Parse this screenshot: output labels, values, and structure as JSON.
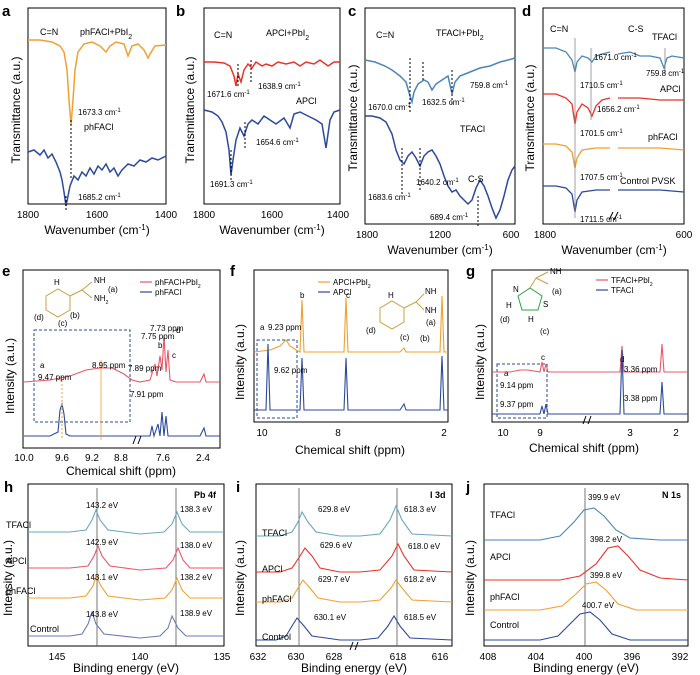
{
  "figure": {
    "panels": [
      {
        "id": "a",
        "label": "a",
        "type": "ftir",
        "xlabel": "Wavenumber (cm",
        "xlabel_sup": "-1",
        "xlabel_end": ")",
        "ylabel": "Transmittance (a.u.)",
        "xticks": [
          "1800",
          "1600",
          "1400"
        ],
        "xlim": [
          1800,
          1400
        ],
        "peak_label": "C=N",
        "series": [
          {
            "name": "phFACl+PbI2",
            "color": "#f0a030",
            "legend_main": "phFACl+PbI",
            "legend_sub": "2",
            "peak_cm": 1673.3,
            "peak_text": "1673.3 cm",
            "peak_sup": "-1"
          },
          {
            "name": "phFACl",
            "color": "#2b4a9a",
            "legend_main": "phFACl",
            "peak_cm": 1685.2,
            "peak_text": "1685.2 cm",
            "peak_sup": "-1"
          }
        ]
      },
      {
        "id": "b",
        "label": "b",
        "type": "ftir",
        "xlabel": "Wavenumber (cm",
        "xlabel_sup": "-1",
        "xlabel_end": ")",
        "ylabel": "Transmittance (a.u.)",
        "xticks": [
          "1800",
          "1600",
          "1400"
        ],
        "xlim": [
          1800,
          1400
        ],
        "peak_label": "C=N",
        "series": [
          {
            "name": "APCl+PbI2",
            "color": "#e8322a",
            "legend_main": "APCl+PbI",
            "legend_sub": "2",
            "peaks_text": [
              "1671.6 cm",
              "1638.9 cm"
            ],
            "peak_sup": "-1"
          },
          {
            "name": "APCl",
            "color": "#2b4a9a",
            "legend_main": "APCl",
            "peaks_text": [
              "1691.3 cm",
              "1654.6 cm"
            ],
            "peak_sup": "-1"
          }
        ]
      },
      {
        "id": "c",
        "label": "c",
        "type": "ftir",
        "xlabel": "Wavenumber (cm",
        "xlabel_sup": "-1",
        "xlabel_end": ")",
        "ylabel": "Transmittance (a.u.)",
        "xticks": [
          "1800",
          "1200",
          "600"
        ],
        "xlim": [
          1800,
          600
        ],
        "peak_label": "C=N",
        "cs_label": "C-S",
        "series": [
          {
            "name": "TFACl+PbI2",
            "color": "#4a86b8",
            "legend_main": "TFACl+PbI",
            "legend_sub": "2",
            "peaks_text": [
              "1670.0 cm",
              "1632.5 cm",
              "759.8 cm"
            ],
            "peak_sup": "-1"
          },
          {
            "name": "TFACl",
            "color": "#2b4a9a",
            "legend_main": "TFACl",
            "peaks_text": [
              "1683.6 cm",
              "1640.2 cm",
              "689.4 cm"
            ],
            "peak_sup": "-1"
          }
        ]
      },
      {
        "id": "d",
        "label": "d",
        "type": "ftir",
        "xlabel": "Wavenumber (cm",
        "xlabel_sup": "-1",
        "xlabel_end": ")",
        "ylabel": "Transmittance (a.u.)",
        "xticks": [
          "1800",
          "600"
        ],
        "xlim": [
          1800,
          600
        ],
        "peak_label": "C=N",
        "cs_label": "C-S",
        "series": [
          {
            "name": "TFACl",
            "color": "#4a86b8",
            "peaks_text": [
              "1710.5 cm",
              "1671.0 cm",
              "759.8 cm"
            ]
          },
          {
            "name": "APCl",
            "color": "#e8322a",
            "peaks_text": [
              "1701.5 cm",
              "1656.2 cm"
            ]
          },
          {
            "name": "phFACl",
            "color": "#f0a030",
            "peaks_text": [
              "1707.5 cm"
            ]
          },
          {
            "name": "Control PVSK",
            "color": "#2b4a9a",
            "peaks_text": [
              "1711.5 cm"
            ]
          }
        ],
        "peak_sup": "-1"
      },
      {
        "id": "e",
        "label": "e",
        "type": "nmr",
        "xlabel": "Chemical shift (ppm)",
        "ylabel": "Intensity (a.u.)",
        "xticks": [
          "10.0",
          "9.6",
          "9.2",
          "8.8",
          "7.6",
          "2.4"
        ],
        "series": [
          {
            "name": "phFACl+PbI2",
            "color": "#e85868",
            "legend_main": "phFACl+PbI",
            "legend_sub": "2"
          },
          {
            "name": "phFACl",
            "color": "#2b4a9a",
            "legend_main": "phFACl"
          }
        ],
        "annotations": [
          "a",
          "9.47 ppm",
          "8.95 ppm",
          "7.91 ppm",
          "7.75 ppm",
          "7.73 ppm",
          "7.89 ppm",
          "b",
          "c",
          "d"
        ],
        "molecule_labels": [
          "H",
          "NH",
          "NH",
          "2",
          "(a)",
          "(b)",
          "(c)",
          "(d)"
        ]
      },
      {
        "id": "f",
        "label": "f",
        "type": "nmr",
        "xlabel": "Chemical shift (ppm)",
        "ylabel": "Intensity (a.u.)",
        "xticks": [
          "10",
          "8",
          "2"
        ],
        "series": [
          {
            "name": "APCl+PbI2",
            "color": "#f0a030",
            "legend_main": "APCl+PbI",
            "legend_sub": "2"
          },
          {
            "name": "APCl",
            "color": "#2b4a9a",
            "legend_main": "APCl"
          }
        ],
        "annotations": [
          "a",
          "9.23 ppm",
          "9.62 ppm",
          "b",
          "c"
        ],
        "molecule_labels": [
          "H",
          "NH",
          "NH",
          "(a)",
          "(b)",
          "(c)",
          "(d)"
        ]
      },
      {
        "id": "g",
        "label": "g",
        "type": "nmr",
        "xlabel": "Chemical shift (ppm)",
        "ylabel": "Intensity (a.u.)",
        "xticks": [
          "10",
          "9",
          "3",
          "2"
        ],
        "series": [
          {
            "name": "TFACl+PbI2",
            "color": "#e85868",
            "legend_main": "TFACl+PbI",
            "legend_sub": "2"
          },
          {
            "name": "TFACl",
            "color": "#2b4a9a",
            "legend_main": "TFACl"
          }
        ],
        "annotations": [
          "a",
          "9.14 ppm",
          "9.37 ppm",
          "c",
          "d",
          "3.36 ppm",
          "3.38 ppm"
        ],
        "molecule_labels": [
          "N",
          "S",
          "H",
          "H",
          "NH",
          "(a)",
          "(c)",
          "(d)"
        ]
      },
      {
        "id": "h",
        "label": "h",
        "type": "xps",
        "xlabel": "Binding energy (eV)",
        "ylabel": "Intensity (a.u.)",
        "xticks": [
          "145",
          "140",
          "135"
        ],
        "region": "Pb 4f",
        "samples": [
          "TFACl",
          "APCl",
          "phFACl",
          "Control"
        ],
        "colors": [
          "#6aa6c0",
          "#e85868",
          "#f0a030",
          "#6a7ab8"
        ],
        "peaks": [
          [
            "143.2 eV",
            "138.3 eV"
          ],
          [
            "142.9 eV",
            "138.0 eV"
          ],
          [
            "143.1 eV",
            "138.2 eV"
          ],
          [
            "143.8 eV",
            "138.9 eV"
          ]
        ]
      },
      {
        "id": "i",
        "label": "i",
        "type": "xps",
        "xlabel": "Binding energy (eV)",
        "ylabel": "Intensity (a.u.)",
        "xticks": [
          "632",
          "630",
          "628",
          "618",
          "616"
        ],
        "region": "I 3d",
        "samples": [
          "TFACl",
          "APCl",
          "phFACl",
          "Control"
        ],
        "colors": [
          "#6aa6c0",
          "#e8322a",
          "#f0a030",
          "#2b4a9a"
        ],
        "peaks": [
          [
            "629.8 eV",
            "618.3 eV"
          ],
          [
            "629.6 eV",
            "618.0 eV"
          ],
          [
            "629.7 eV",
            "618.2 eV"
          ],
          [
            "630.1 eV",
            "618.5 eV"
          ]
        ]
      },
      {
        "id": "j",
        "label": "j",
        "type": "xps",
        "xlabel": "Binding energy (eV)",
        "ylabel": "Intensity (a.u.)",
        "xticks": [
          "408",
          "404",
          "400",
          "396",
          "392"
        ],
        "region": "N 1s",
        "samples": [
          "TFACl",
          "APCl",
          "phFACl",
          "Control"
        ],
        "colors": [
          "#4a86b8",
          "#e8322a",
          "#f0a030",
          "#2b4a9a"
        ],
        "peaks": [
          [
            "399.9 eV"
          ],
          [
            "398.2 eV"
          ],
          [
            "399.8 eV"
          ],
          [
            "400.7 eV"
          ]
        ]
      }
    ]
  },
  "chart_data": [
    {
      "type": "line",
      "title": "a",
      "xlabel": "Wavenumber (cm-1)",
      "ylabel": "Transmittance (a.u.)",
      "xlim": [
        1800,
        1400
      ],
      "series": [
        {
          "name": "phFACl+PbI2",
          "peaks": [
            1673.3
          ]
        },
        {
          "name": "phFACl",
          "peaks": [
            1685.2
          ]
        }
      ]
    },
    {
      "type": "line",
      "title": "b",
      "xlabel": "Wavenumber (cm-1)",
      "ylabel": "Transmittance (a.u.)",
      "xlim": [
        1800,
        1400
      ],
      "series": [
        {
          "name": "APCl+PbI2",
          "peaks": [
            1671.6,
            1638.9
          ]
        },
        {
          "name": "APCl",
          "peaks": [
            1691.3,
            1654.6
          ]
        }
      ]
    },
    {
      "type": "line",
      "title": "c",
      "xlabel": "Wavenumber (cm-1)",
      "ylabel": "Transmittance (a.u.)",
      "xlim": [
        1800,
        600
      ],
      "series": [
        {
          "name": "TFACl+PbI2",
          "peaks": [
            1670.0,
            1632.5,
            759.8
          ]
        },
        {
          "name": "TFACl",
          "peaks": [
            1683.6,
            1640.2,
            689.4
          ]
        }
      ]
    },
    {
      "type": "line",
      "title": "d",
      "xlabel": "Wavenumber (cm-1)",
      "ylabel": "Transmittance (a.u.)",
      "xlim": [
        1800,
        600
      ],
      "series": [
        {
          "name": "TFACl",
          "peaks": [
            1710.5,
            1671.0,
            759.8
          ]
        },
        {
          "name": "APCl",
          "peaks": [
            1701.5,
            1656.2
          ]
        },
        {
          "name": "phFACl",
          "peaks": [
            1707.5
          ]
        },
        {
          "name": "Control PVSK",
          "peaks": [
            1711.5
          ]
        }
      ]
    },
    {
      "type": "line",
      "title": "e",
      "xlabel": "Chemical shift (ppm)",
      "ylabel": "Intensity (a.u.)",
      "series": [
        {
          "name": "phFACl+PbI2",
          "peaks": [
            8.95,
            7.91,
            7.75,
            7.73
          ]
        },
        {
          "name": "phFACl",
          "peaks": [
            9.47,
            7.89
          ]
        }
      ]
    },
    {
      "type": "line",
      "title": "f",
      "xlabel": "Chemical shift (ppm)",
      "ylabel": "Intensity (a.u.)",
      "series": [
        {
          "name": "APCl+PbI2",
          "peaks": [
            9.23
          ]
        },
        {
          "name": "APCl",
          "peaks": [
            9.62
          ]
        }
      ]
    },
    {
      "type": "line",
      "title": "g",
      "xlabel": "Chemical shift (ppm)",
      "ylabel": "Intensity (a.u.)",
      "series": [
        {
          "name": "TFACl+PbI2",
          "peaks": [
            9.14,
            3.36
          ]
        },
        {
          "name": "TFACl",
          "peaks": [
            9.37,
            3.38
          ]
        }
      ]
    },
    {
      "type": "line",
      "title": "h",
      "xlabel": "Binding energy (eV)",
      "ylabel": "Intensity (a.u.)",
      "series": [
        {
          "name": "TFACl",
          "peaks": [
            143.2,
            138.3
          ]
        },
        {
          "name": "APCl",
          "peaks": [
            142.9,
            138.0
          ]
        },
        {
          "name": "phFACl",
          "peaks": [
            143.1,
            138.2
          ]
        },
        {
          "name": "Control",
          "peaks": [
            143.8,
            138.9
          ]
        }
      ]
    },
    {
      "type": "line",
      "title": "i",
      "xlabel": "Binding energy (eV)",
      "ylabel": "Intensity (a.u.)",
      "series": [
        {
          "name": "TFACl",
          "peaks": [
            629.8,
            618.3
          ]
        },
        {
          "name": "APCl",
          "peaks": [
            629.6,
            618.0
          ]
        },
        {
          "name": "phFACl",
          "peaks": [
            629.7,
            618.2
          ]
        },
        {
          "name": "Control",
          "peaks": [
            630.1,
            618.5
          ]
        }
      ]
    },
    {
      "type": "line",
      "title": "j",
      "xlabel": "Binding energy (eV)",
      "ylabel": "Intensity (a.u.)",
      "series": [
        {
          "name": "TFACl",
          "peaks": [
            399.9
          ]
        },
        {
          "name": "APCl",
          "peaks": [
            398.2
          ]
        },
        {
          "name": "phFACl",
          "peaks": [
            399.8
          ]
        },
        {
          "name": "Control",
          "peaks": [
            400.7
          ]
        }
      ]
    }
  ]
}
